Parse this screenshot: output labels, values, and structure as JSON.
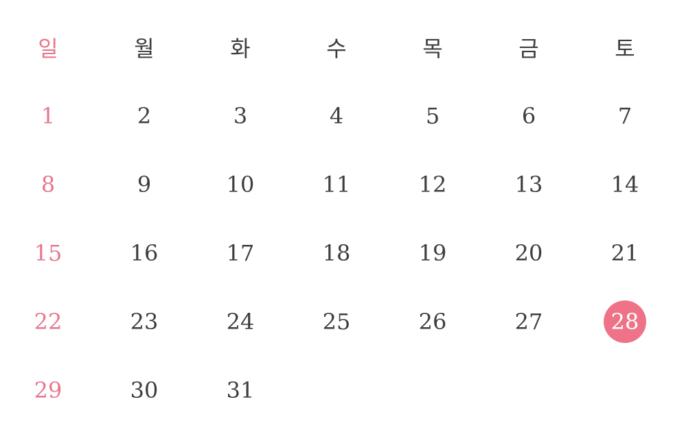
{
  "weekdays": [
    "일",
    "월",
    "화",
    "수",
    "목",
    "금",
    "토"
  ],
  "weeks": [
    [
      "1",
      "2",
      "3",
      "4",
      "5",
      "6",
      "7"
    ],
    [
      "8",
      "9",
      "10",
      "11",
      "12",
      "13",
      "14"
    ],
    [
      "15",
      "16",
      "17",
      "18",
      "19",
      "20",
      "21"
    ],
    [
      "22",
      "23",
      "24",
      "25",
      "26",
      "27",
      "28"
    ],
    [
      "29",
      "30",
      "31",
      "",
      "",
      "",
      ""
    ]
  ],
  "selected_day": "28",
  "colors": {
    "sunday": "#e8778d",
    "text": "#3d3d3d",
    "selected_bg": "#ee7389",
    "selected_text": "#ffffff"
  }
}
